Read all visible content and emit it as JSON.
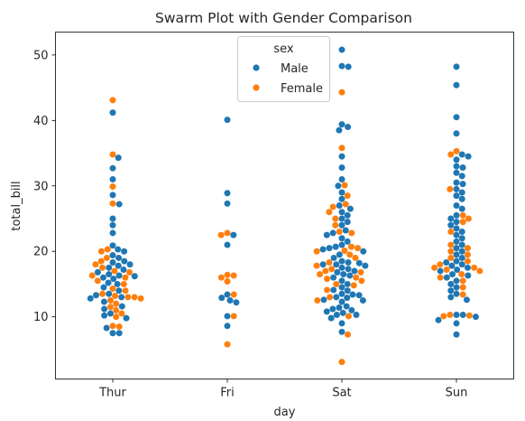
{
  "chart_data": {
    "type": "scatter",
    "subtype": "swarm",
    "title": "Swarm Plot with Gender Comparison",
    "xlabel": "day",
    "ylabel": "total_bill",
    "categories": [
      "Thur",
      "Fri",
      "Sat",
      "Sun"
    ],
    "ylim": [
      0.5,
      53.5
    ],
    "yticks": [
      10,
      20,
      30,
      40,
      50
    ],
    "grid": false,
    "legend": {
      "title": "sex",
      "placement": "top-center"
    },
    "series": [
      {
        "name": "Male",
        "color": "#1f77b4",
        "values": {
          "Thur": [
            7.5,
            7.5,
            8.3,
            9.8,
            10.2,
            10.5,
            11.2,
            11.6,
            12.3,
            12.8,
            13.0,
            13.3,
            13.5,
            14.0,
            14.5,
            15.0,
            15.2,
            15.8,
            16.0,
            16.2,
            16.3,
            16.5,
            16.8,
            17.2,
            17.5,
            17.8,
            18.0,
            18.3,
            18.5,
            19.0,
            19.4,
            20.0,
            20.3,
            20.9,
            22.8,
            24.0,
            25.0,
            27.2,
            28.6,
            31.0,
            32.7,
            34.3,
            41.2
          ],
          "Fri": [
            8.6,
            10.1,
            12.2,
            12.5,
            12.9,
            13.4,
            21.0,
            22.5,
            27.3,
            28.9,
            40.1
          ],
          "Sat": [
            7.7,
            9.0,
            9.8,
            10.3,
            10.3,
            10.6,
            10.8,
            11.0,
            11.2,
            11.4,
            11.6,
            12.3,
            12.5,
            12.6,
            12.9,
            13.0,
            13.3,
            13.4,
            13.5,
            14.0,
            14.1,
            14.5,
            15.0,
            15.5,
            16.0,
            16.3,
            16.5,
            16.8,
            17.0,
            17.3,
            17.5,
            17.8,
            18.0,
            18.0,
            18.2,
            18.3,
            18.5,
            19.0,
            19.5,
            20.0,
            20.3,
            20.5,
            20.7,
            21.0,
            21.5,
            22.0,
            22.5,
            22.8,
            23.2,
            24.0,
            24.5,
            25.0,
            25.5,
            26.0,
            26.5,
            27.0,
            28.0,
            29.0,
            30.0,
            31.0,
            32.8,
            34.5,
            38.5,
            39.0,
            39.4,
            48.2,
            48.3,
            50.8
          ],
          "Sun": [
            7.3,
            9.0,
            9.5,
            10.0,
            10.3,
            10.3,
            12.6,
            13.0,
            13.5,
            14.0,
            14.5,
            15.0,
            15.5,
            16.0,
            16.3,
            16.5,
            17.0,
            17.2,
            17.5,
            17.8,
            18.0,
            18.3,
            18.5,
            19.0,
            19.5,
            20.0,
            20.5,
            21.0,
            21.5,
            22.0,
            22.5,
            23.0,
            23.5,
            24.0,
            24.5,
            25.0,
            25.5,
            26.5,
            27.0,
            28.0,
            28.5,
            29.0,
            29.5,
            30.3,
            30.5,
            31.5,
            32.0,
            32.8,
            33.0,
            34.0,
            34.5,
            34.8,
            38.0,
            40.5,
            45.4,
            48.2
          ]
        }
      },
      {
        "name": "Female",
        "color": "#ff7f0e",
        "values": {
          "Thur": [
            8.5,
            8.6,
            10.0,
            10.5,
            11.0,
            11.5,
            12.0,
            12.5,
            12.8,
            13.0,
            13.0,
            13.2,
            13.5,
            14.0,
            14.3,
            15.0,
            15.5,
            16.0,
            16.3,
            16.8,
            17.0,
            17.5,
            18.0,
            18.5,
            19.0,
            20.0,
            20.3,
            27.3,
            29.9,
            34.8,
            43.1
          ],
          "Fri": [
            5.8,
            10.1,
            13.4,
            15.4,
            16.0,
            16.3,
            16.4,
            22.5,
            22.8
          ],
          "Sat": [
            3.1,
            7.3,
            10.1,
            12.5,
            13.0,
            14.1,
            14.8,
            15.0,
            15.5,
            15.8,
            16.0,
            16.5,
            16.8,
            17.0,
            17.3,
            17.8,
            18.3,
            19.0,
            19.5,
            20.0,
            20.1,
            20.5,
            20.7,
            22.8,
            23.0,
            24.0,
            25.0,
            26.0,
            26.8,
            27.2,
            28.5,
            30.1,
            35.8,
            44.3
          ],
          "Sun": [
            10.1,
            10.2,
            10.3,
            13.4,
            14.5,
            15.5,
            16.0,
            16.5,
            17.0,
            17.2,
            17.5,
            17.5,
            18.0,
            18.5,
            19.0,
            19.5,
            20.0,
            20.5,
            21.0,
            23.0,
            24.5,
            25.0,
            25.5,
            29.5,
            34.8,
            35.3
          ]
        }
      }
    ]
  }
}
